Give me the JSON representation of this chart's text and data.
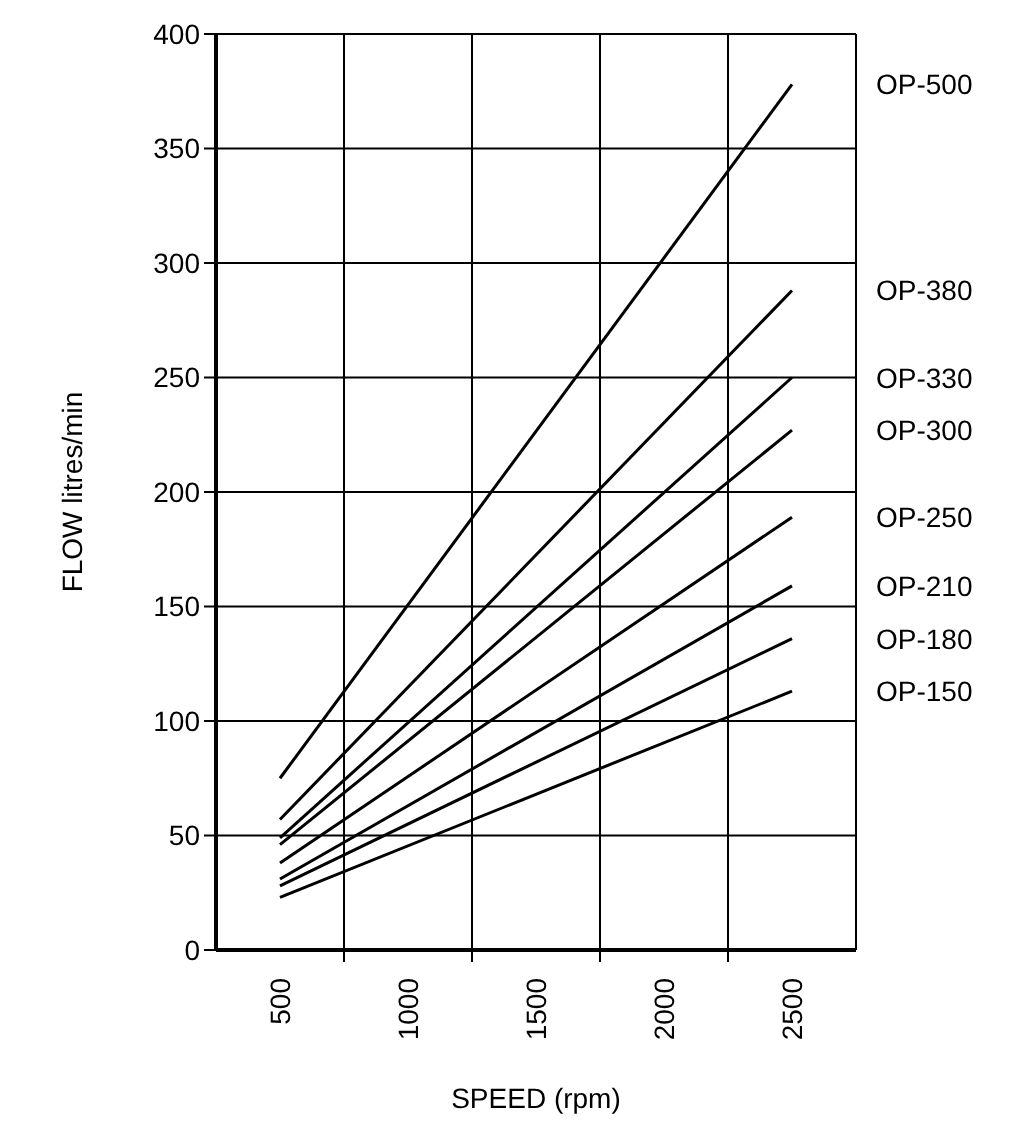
{
  "chart_data": {
    "type": "line",
    "xlabel": "SPEED (rpm)",
    "ylabel": "FLOW litres/min",
    "x": [
      500,
      2500
    ],
    "series": [
      {
        "name": "OP-500",
        "color": "#000000",
        "values": [
          75,
          378
        ]
      },
      {
        "name": "OP-380",
        "color": "#000000",
        "values": [
          57,
          288
        ]
      },
      {
        "name": "OP-330",
        "color": "#000000",
        "values": [
          49,
          250
        ]
      },
      {
        "name": "OP-300",
        "color": "#000000",
        "values": [
          46,
          227
        ]
      },
      {
        "name": "OP-250",
        "color": "#000000",
        "values": [
          38,
          189
        ]
      },
      {
        "name": "OP-210",
        "color": "#000000",
        "values": [
          31,
          159
        ]
      },
      {
        "name": "OP-180",
        "color": "#000000",
        "values": [
          28,
          136
        ]
      },
      {
        "name": "OP-150",
        "color": "#000000",
        "values": [
          23,
          113
        ]
      }
    ],
    "xlim": [
      250,
      2750
    ],
    "xticks": [
      500,
      {
        "value": 750,
        "label": null
      },
      1000,
      {
        "value": 1250,
        "label": null
      },
      1500,
      {
        "value": 1750,
        "label": null
      },
      2000,
      {
        "value": 2250,
        "label": null
      },
      2500
    ],
    "ylim": [
      0,
      400
    ],
    "yticks": [
      0,
      50,
      100,
      150,
      200,
      250,
      300,
      350,
      400
    ],
    "grid": true,
    "legend": false,
    "marker": "none",
    "line_style": "solid"
  }
}
